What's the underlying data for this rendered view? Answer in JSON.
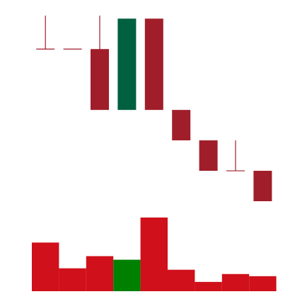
{
  "chart_data": [
    {
      "type": "candlestick",
      "candles": [
        {
          "open": 100,
          "close": 100,
          "high": 111,
          "low": 100
        },
        {
          "open": 100,
          "close": 100,
          "high": 100,
          "low": 100
        },
        {
          "open": 100,
          "close": 80,
          "high": 111,
          "low": 80
        },
        {
          "open": 80,
          "close": 110,
          "high": 110,
          "low": 80
        },
        {
          "open": 110,
          "close": 80,
          "high": 110,
          "low": 80
        },
        {
          "open": 80,
          "close": 70,
          "high": 80,
          "low": 70
        },
        {
          "open": 70,
          "close": 60,
          "high": 70,
          "low": 60
        },
        {
          "open": 60,
          "close": 60,
          "high": 70,
          "low": 60
        },
        {
          "open": 60,
          "close": 50,
          "high": 60,
          "low": 50
        }
      ],
      "ylim": [
        50,
        111
      ],
      "colors": {
        "up": "#006040",
        "down": "#a01e2a"
      },
      "grid": false,
      "legend": "none"
    },
    {
      "type": "bar",
      "values": [
        68,
        32,
        49,
        44,
        103,
        30,
        13,
        24,
        21
      ],
      "directions": [
        "down",
        "down",
        "down",
        "up",
        "down",
        "down",
        "down",
        "down",
        "down"
      ],
      "ylim": [
        0,
        103
      ],
      "colors": {
        "up": "#008000",
        "down": "#d0101a"
      },
      "grid": false,
      "legend": "none"
    }
  ]
}
